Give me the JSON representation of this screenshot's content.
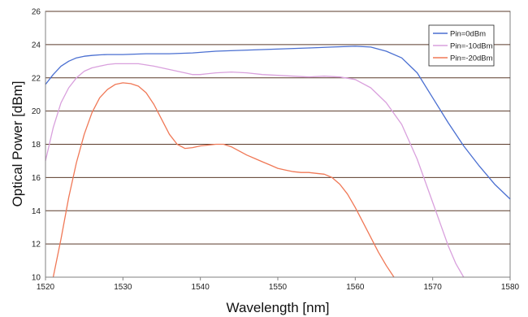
{
  "chart_data": {
    "type": "line",
    "title": "",
    "xlabel": "Wavelength [nm]",
    "ylabel": "Optical Power [dBm]",
    "xlim": [
      1520,
      1580
    ],
    "ylim": [
      10,
      26
    ],
    "xticks": [
      1520,
      1530,
      1540,
      1550,
      1560,
      1570,
      1580
    ],
    "yticks": [
      10,
      12,
      14,
      16,
      18,
      20,
      22,
      24,
      26
    ],
    "grid": "horizontal",
    "legend_position": "top-right",
    "series": [
      {
        "name": "Pin=0dBm",
        "color": "#4a6fd1",
        "x": [
          1520,
          1521,
          1522,
          1523,
          1524,
          1525,
          1526,
          1527,
          1528,
          1530,
          1533,
          1536,
          1539,
          1542,
          1545,
          1548,
          1551,
          1554,
          1557,
          1560,
          1562,
          1564,
          1566,
          1568,
          1570,
          1572,
          1574,
          1576,
          1578,
          1580
        ],
        "y": [
          21.6,
          22.2,
          22.7,
          23.0,
          23.2,
          23.3,
          23.35,
          23.38,
          23.4,
          23.4,
          23.45,
          23.45,
          23.5,
          23.6,
          23.65,
          23.7,
          23.75,
          23.8,
          23.85,
          23.9,
          23.85,
          23.6,
          23.2,
          22.3,
          20.8,
          19.3,
          17.9,
          16.7,
          15.6,
          14.7
        ]
      },
      {
        "name": "Pin=-10dBm",
        "color": "#d9a0dd",
        "x": [
          1520,
          1521,
          1522,
          1523,
          1524,
          1525,
          1526,
          1527,
          1528,
          1529,
          1530,
          1532,
          1534,
          1536,
          1538,
          1539,
          1540,
          1542,
          1544,
          1546,
          1548,
          1550,
          1552,
          1554,
          1556,
          1558,
          1560,
          1562,
          1564,
          1566,
          1568,
          1570,
          1572,
          1573,
          1574
        ],
        "y": [
          17.0,
          19.0,
          20.5,
          21.4,
          22.0,
          22.4,
          22.6,
          22.7,
          22.8,
          22.85,
          22.85,
          22.85,
          22.7,
          22.5,
          22.3,
          22.2,
          22.2,
          22.3,
          22.35,
          22.3,
          22.2,
          22.15,
          22.1,
          22.05,
          22.1,
          22.05,
          21.9,
          21.4,
          20.5,
          19.2,
          17.1,
          14.5,
          11.9,
          10.8,
          10.0
        ]
      },
      {
        "name": "Pin=-20dBm",
        "color": "#f07856",
        "x": [
          1521,
          1522,
          1523,
          1524,
          1525,
          1526,
          1527,
          1528,
          1529,
          1530,
          1531,
          1532,
          1533,
          1534,
          1535,
          1536,
          1537,
          1538,
          1539,
          1540,
          1541,
          1542,
          1543,
          1544,
          1545,
          1546,
          1547,
          1548,
          1549,
          1550,
          1551,
          1552,
          1553,
          1554,
          1555,
          1556,
          1557,
          1558,
          1559,
          1560,
          1561,
          1562,
          1563,
          1564,
          1565
        ],
        "y": [
          10.0,
          12.3,
          14.8,
          16.9,
          18.6,
          19.9,
          20.8,
          21.3,
          21.6,
          21.7,
          21.65,
          21.5,
          21.1,
          20.4,
          19.5,
          18.6,
          18.0,
          17.75,
          17.8,
          17.9,
          17.95,
          18.0,
          18.0,
          17.85,
          17.6,
          17.35,
          17.15,
          16.95,
          16.75,
          16.55,
          16.45,
          16.35,
          16.3,
          16.3,
          16.25,
          16.2,
          16.0,
          15.6,
          15.0,
          14.2,
          13.3,
          12.4,
          11.5,
          10.7,
          10.0
        ]
      }
    ]
  }
}
